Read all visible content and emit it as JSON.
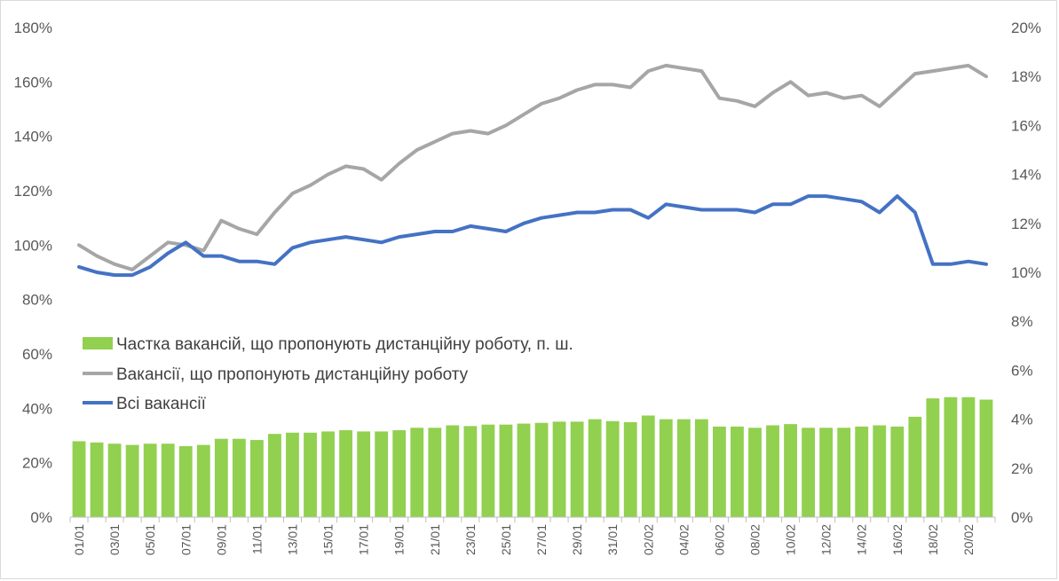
{
  "chart_data": {
    "type": "bar+line",
    "title": "",
    "x": [
      "01/01",
      "02/01",
      "03/01",
      "04/01",
      "05/01",
      "06/01",
      "07/01",
      "08/01",
      "09/01",
      "10/01",
      "11/01",
      "12/01",
      "13/01",
      "14/01",
      "15/01",
      "16/01",
      "17/01",
      "18/01",
      "19/01",
      "20/01",
      "21/01",
      "22/01",
      "23/01",
      "24/01",
      "25/01",
      "26/01",
      "27/01",
      "28/01",
      "29/01",
      "30/01",
      "31/01",
      "01/02",
      "02/02",
      "03/02",
      "04/02",
      "05/02",
      "06/02",
      "07/02",
      "08/02",
      "09/02",
      "10/02",
      "11/02",
      "12/02",
      "13/02",
      "14/02",
      "15/02",
      "16/02",
      "17/02",
      "18/02",
      "19/02",
      "20/02",
      "21/02"
    ],
    "x_tick_labels": [
      "01/01",
      "03/01",
      "05/01",
      "07/01",
      "09/01",
      "11/01",
      "13/01",
      "15/01",
      "17/01",
      "19/01",
      "21/01",
      "23/01",
      "25/01",
      "27/01",
      "29/01",
      "31/01",
      "02/02",
      "04/02",
      "06/02",
      "08/02",
      "10/02",
      "12/02",
      "14/02",
      "16/02",
      "18/02",
      "20/02"
    ],
    "y_left": {
      "ylim": [
        0,
        180
      ],
      "ticks": [
        "0%",
        "20%",
        "40%",
        "60%",
        "80%",
        "100%",
        "120%",
        "140%",
        "160%",
        "180%"
      ]
    },
    "y_right": {
      "ylim": [
        0,
        20
      ],
      "ticks": [
        "0%",
        "2%",
        "4%",
        "6%",
        "8%",
        "10%",
        "12%",
        "14%",
        "16%",
        "18%",
        "20%"
      ]
    },
    "series": [
      {
        "name": "Частка вакансій, що пропонують дистанційну роботу, п. ш.",
        "kind": "bar",
        "axis": "right",
        "color": "#92D050",
        "values": [
          3.1,
          3.05,
          3.0,
          2.95,
          3.0,
          3.0,
          2.9,
          2.95,
          3.2,
          3.2,
          3.15,
          3.4,
          3.45,
          3.45,
          3.5,
          3.55,
          3.5,
          3.5,
          3.55,
          3.65,
          3.65,
          3.75,
          3.72,
          3.78,
          3.78,
          3.82,
          3.85,
          3.9,
          3.9,
          4.0,
          3.92,
          3.88,
          4.15,
          4.0,
          4.0,
          4.0,
          3.7,
          3.7,
          3.65,
          3.75,
          3.8,
          3.65,
          3.65,
          3.65,
          3.7,
          3.75,
          3.7,
          4.1,
          4.85,
          4.9,
          4.9,
          4.8
        ]
      },
      {
        "name": "Вакансії, що пропонують дистанційну роботу",
        "kind": "line",
        "axis": "left",
        "color": "#A6A6A6",
        "values": [
          100,
          96,
          93,
          91,
          96,
          101,
          100,
          98,
          109,
          106,
          104,
          112,
          119,
          122,
          126,
          129,
          128,
          124,
          130,
          135,
          138,
          141,
          142,
          141,
          144,
          148,
          152,
          154,
          157,
          159,
          159,
          158,
          164,
          166,
          165,
          164,
          154,
          153,
          151,
          156,
          160,
          155,
          156,
          154,
          155,
          151,
          157,
          163,
          164,
          165,
          166,
          162
        ]
      },
      {
        "name": "Всі вакансії",
        "kind": "line",
        "axis": "left",
        "color": "#4472C4",
        "values": [
          92,
          90,
          89,
          89,
          92,
          97,
          101,
          96,
          96,
          94,
          94,
          93,
          99,
          101,
          102,
          103,
          102,
          101,
          103,
          104,
          105,
          105,
          107,
          106,
          105,
          108,
          110,
          111,
          112,
          112,
          113,
          113,
          110,
          115,
          114,
          113,
          113,
          113,
          112,
          115,
          115,
          118,
          118,
          117,
          116,
          112,
          118,
          112,
          93,
          93,
          94,
          93
        ]
      }
    ],
    "legend": "left-center",
    "grid": false
  }
}
